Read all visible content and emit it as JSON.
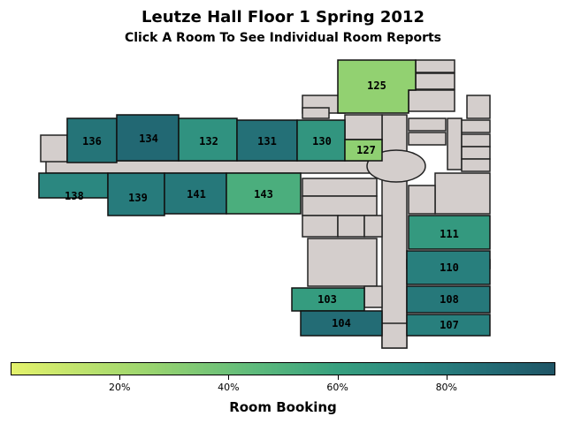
{
  "title": "Leutze Hall Floor 1 Spring 2012",
  "subtitle": "Click A Room To See Individual Room Reports",
  "colors": {
    "background_rooms": "#d4cecc",
    "outline": "#111111",
    "scale_start": "#e4f26c",
    "scale_end": "#1f5566"
  },
  "rooms": [
    {
      "id": "125",
      "label": "125",
      "booking_pct": 28
    },
    {
      "id": "136",
      "label": "136",
      "booking_pct": 84
    },
    {
      "id": "134",
      "label": "134",
      "booking_pct": 90
    },
    {
      "id": "132",
      "label": "132",
      "booking_pct": 68
    },
    {
      "id": "131",
      "label": "131",
      "booking_pct": 86
    },
    {
      "id": "130",
      "label": "130",
      "booking_pct": 66
    },
    {
      "id": "127",
      "label": "127",
      "booking_pct": 29
    },
    {
      "id": "138",
      "label": "138",
      "booking_pct": 74
    },
    {
      "id": "139",
      "label": "139",
      "booking_pct": 80
    },
    {
      "id": "141",
      "label": "141",
      "booking_pct": 82
    },
    {
      "id": "143",
      "label": "143",
      "booking_pct": 52
    },
    {
      "id": "111",
      "label": "111",
      "booking_pct": 64
    },
    {
      "id": "110",
      "label": "110",
      "booking_pct": 78
    },
    {
      "id": "108",
      "label": "108",
      "booking_pct": 82
    },
    {
      "id": "107",
      "label": "107",
      "booking_pct": 78
    },
    {
      "id": "103",
      "label": "103",
      "booking_pct": 62
    },
    {
      "id": "104",
      "label": "104",
      "booking_pct": 88
    }
  ],
  "legend": {
    "title": "Room Booking",
    "ticks": [
      {
        "value": 20,
        "label": "20%"
      },
      {
        "value": 40,
        "label": "40%"
      },
      {
        "value": 60,
        "label": "60%"
      },
      {
        "value": 80,
        "label": "80%"
      }
    ],
    "range": [
      0,
      100
    ]
  }
}
